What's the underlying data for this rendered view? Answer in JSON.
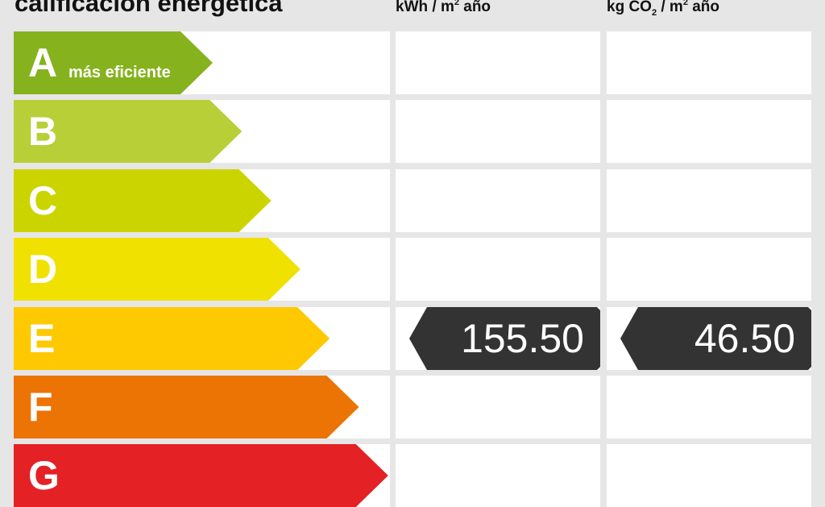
{
  "header": {
    "title": "calificación energética",
    "col1": {
      "pre": "kWh / m",
      "sup": "2",
      "post": " año"
    },
    "col2": {
      "pre": "kg CO",
      "sub": "2",
      "mid": " / m",
      "sup": "2",
      "post": " año"
    }
  },
  "rows": [
    {
      "letter": "A",
      "note": "más eficiente",
      "color": "#86b21e"
    },
    {
      "letter": "B",
      "note": "",
      "color": "#b8cf38"
    },
    {
      "letter": "C",
      "note": "",
      "color": "#ccd400"
    },
    {
      "letter": "D",
      "note": "",
      "color": "#f0e100"
    },
    {
      "letter": "E",
      "note": "",
      "color": "#fec900"
    },
    {
      "letter": "F",
      "note": "",
      "color": "#ec7404"
    },
    {
      "letter": "G",
      "note": "",
      "color": "#e42124"
    }
  ],
  "rating": {
    "row": "E",
    "consumption": "155.50",
    "emissions": "46.50",
    "tag_color": "#333333"
  }
}
